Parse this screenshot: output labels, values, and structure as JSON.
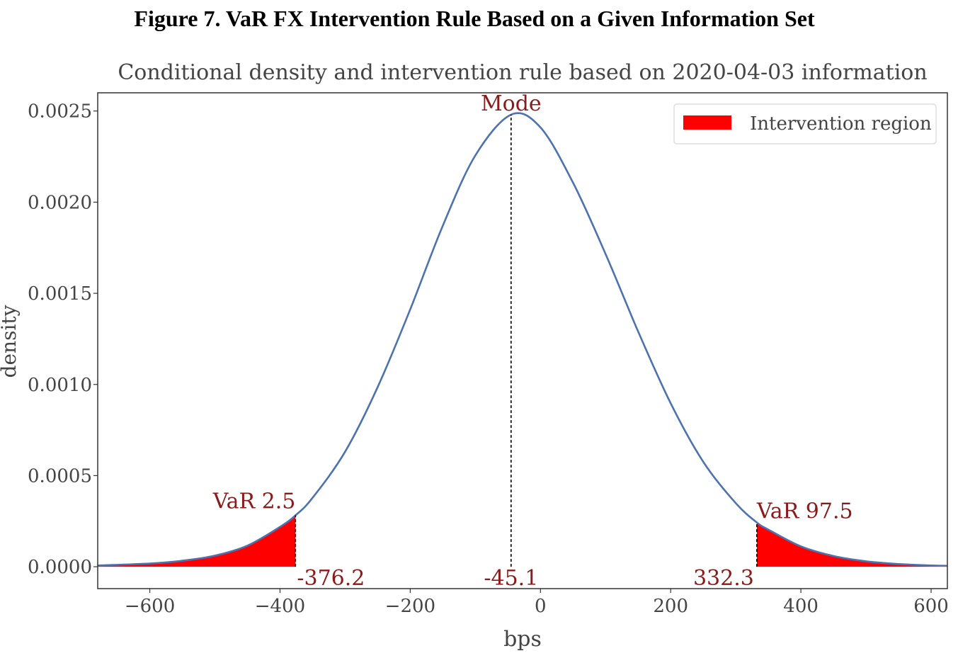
{
  "figure_heading": "Figure 7. VaR FX Intervention Rule Based on a Given Information Set",
  "chart_data": {
    "type": "area",
    "title": "Conditional density and intervention rule based on 2020-04-03 information",
    "xlabel": "bps",
    "ylabel": "density",
    "xlim": [
      -680,
      625
    ],
    "ylim": [
      -0.00012,
      0.0026
    ],
    "xticks": [
      -600,
      -400,
      -200,
      0,
      200,
      400,
      600
    ],
    "xtick_labels": [
      "−600",
      "−400",
      "−200",
      "0",
      "200",
      "400",
      "600"
    ],
    "yticks": [
      0.0,
      0.0005,
      0.001,
      0.0015,
      0.002,
      0.0025
    ],
    "ytick_labels": [
      "0.0000",
      "0.0005",
      "0.0010",
      "0.0015",
      "0.0020",
      "0.0025"
    ],
    "grid": false,
    "legend": {
      "position": "top-right",
      "entries": [
        {
          "label": "Intervention region",
          "color": "#ff0000"
        }
      ]
    },
    "series": [
      {
        "kind": "density-curve",
        "color": "#4c72b0",
        "x": [
          -680,
          -600,
          -550,
          -500,
          -450,
          -400,
          -376.2,
          -350,
          -300,
          -250,
          -200,
          -150,
          -100,
          -45.1,
          0,
          50,
          100,
          150,
          200,
          250,
          300,
          332.3,
          350,
          400,
          450,
          500,
          550,
          600,
          625
        ],
        "y": [
          7e-06,
          1.8e-05,
          3.3e-05,
          6.1e-05,
          0.000116,
          0.000219,
          0.000282,
          0.000378,
          0.000631,
          0.000986,
          0.001412,
          0.001871,
          0.002256,
          0.00248,
          0.00241,
          0.002107,
          0.001716,
          0.001291,
          0.000897,
          0.000576,
          0.000349,
          0.000243,
          0.000204,
          0.000112,
          5.9e-05,
          3e-05,
          1.5e-05,
          7e-06,
          5e-06
        ]
      }
    ],
    "markers": {
      "var_low": {
        "x": -376.2,
        "name_label": "VaR 2.5",
        "value_label": "-376.2"
      },
      "mode": {
        "x": -45.1,
        "name_label": "Mode",
        "value_label": "-45.1"
      },
      "var_high": {
        "x": 332.3,
        "name_label": "VaR 97.5",
        "value_label": "332.3"
      }
    },
    "annotation_color": "#8b1a1a",
    "fill_color": "#ff0000"
  }
}
